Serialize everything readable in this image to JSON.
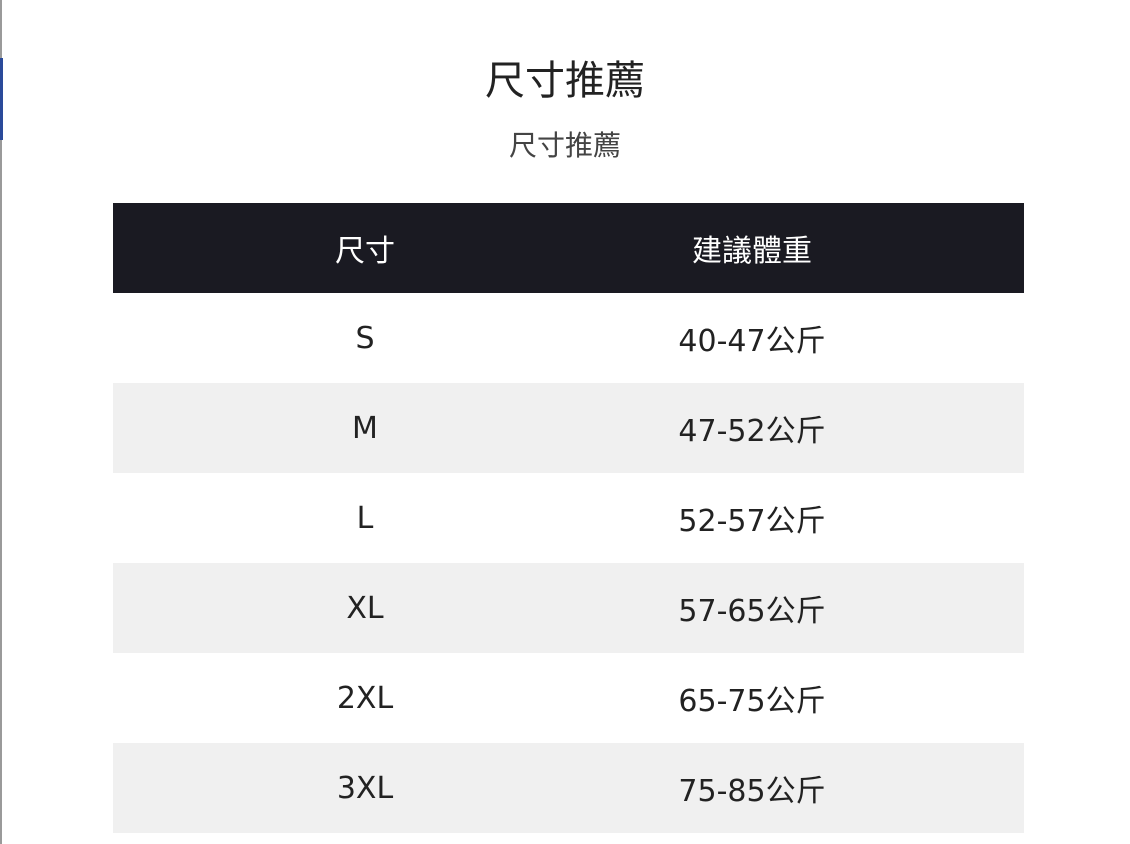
{
  "title": "尺寸推薦",
  "subtitle": "尺寸推薦",
  "table": {
    "headers": [
      "尺寸",
      "建議體重"
    ],
    "rows": [
      [
        "S",
        "40-47公斤"
      ],
      [
        "M",
        "47-52公斤"
      ],
      [
        "L",
        "52-57公斤"
      ],
      [
        "XL",
        "57-65公斤"
      ],
      [
        "2XL",
        "65-75公斤"
      ],
      [
        "3XL",
        "75-85公斤"
      ]
    ]
  },
  "colors": {
    "header_bg": "#1a1a22",
    "alt_row_bg": "#f0f0f0"
  }
}
